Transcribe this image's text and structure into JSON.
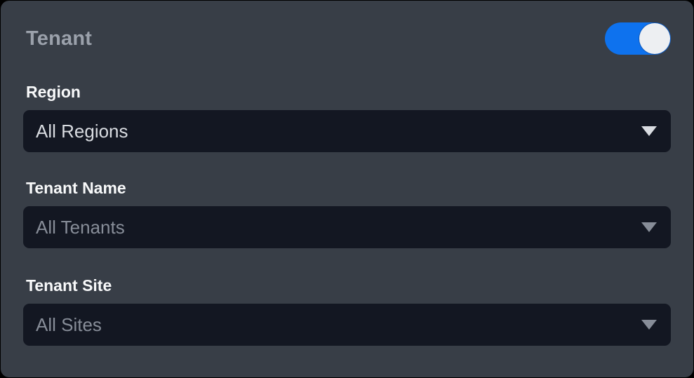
{
  "panel": {
    "title": "Tenant"
  },
  "toggle": {
    "label": "tenant-filter-toggle",
    "state": "on"
  },
  "fields": [
    {
      "id": "region",
      "label": "Region",
      "value": "All Regions",
      "enabled": true
    },
    {
      "id": "tenant-name",
      "label": "Tenant Name",
      "value": "All Tenants",
      "enabled": false
    },
    {
      "id": "tenant-site",
      "label": "Tenant Site",
      "value": "All Sites",
      "enabled": false
    }
  ],
  "colors": {
    "accent": "#0e72ee",
    "panel_bg": "#383e47",
    "select_bg": "#131722",
    "title_text": "#9ba1ab",
    "label_text": "#f8f9fa",
    "select_text": "#d9dce1",
    "select_text_muted": "#878d98"
  }
}
